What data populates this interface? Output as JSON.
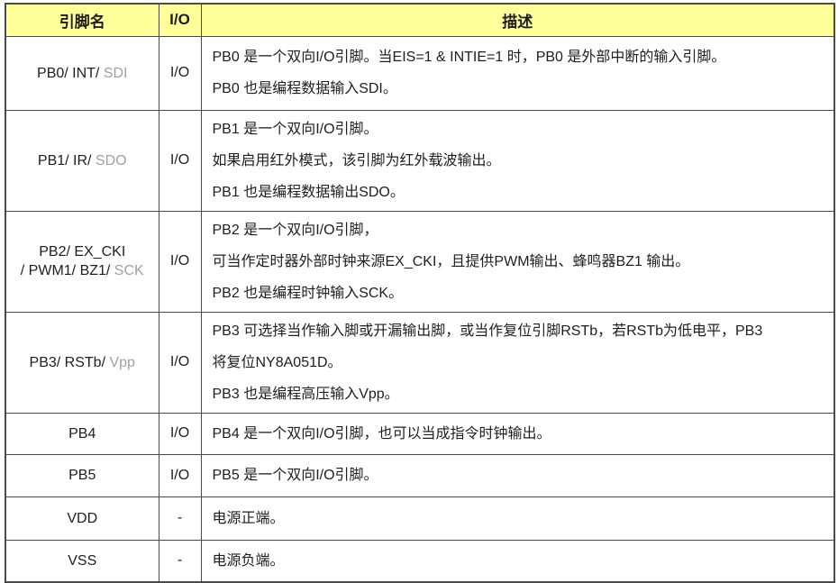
{
  "colors": {
    "header_bg": "#FFFF99",
    "border": "#4A4A4A",
    "text": "#1E1E1E",
    "muted_text": "#A0A0A0"
  },
  "table": {
    "headers": [
      "引脚名",
      "I/O",
      "描述"
    ],
    "rows": [
      {
        "pin": [
          [
            {
              "text": "PB0/ INT/ "
            },
            {
              "text": "SDI",
              "muted": true
            }
          ]
        ],
        "io": "I/O",
        "desc": [
          "PB0 是一个双向I/O引脚。当EIS=1 & INTIE=1 时，PB0 是外部中断的输入引脚。",
          "PB0 也是编程数据输入SDI。"
        ]
      },
      {
        "pin": [
          [
            {
              "text": "PB1/ IR/ "
            },
            {
              "text": "SDO",
              "muted": true
            }
          ]
        ],
        "io": "I/O",
        "desc": [
          "PB1 是一个双向I/O引脚。",
          "如果启用红外模式，该引脚为红外载波输出。",
          "PB1 也是编程数据输出SDO。"
        ]
      },
      {
        "pin": [
          [
            {
              "text": "PB2/ EX_CKI"
            }
          ],
          [
            {
              "text": "/ PWM1/ BZ1/ "
            },
            {
              "text": "SCK",
              "muted": true
            }
          ]
        ],
        "io": "I/O",
        "desc": [
          "PB2 是一个双向I/O引脚，",
          "可当作定时器外部时钟来源EX_CKI，且提供PWM输出、蜂鸣器BZ1 输出。",
          "PB2 也是编程时钟输入SCK。"
        ]
      },
      {
        "pin": [
          [
            {
              "text": "PB3/ RSTb/ "
            },
            {
              "text": "Vpp",
              "muted": true
            }
          ]
        ],
        "io": "I/O",
        "desc": [
          "PB3 可选择当作输入脚或开漏输出脚，或当作复位引脚RSTb，若RSTb为低电平，PB3",
          "将复位NY8A051D。",
          "PB3 也是编程高压输入Vpp。"
        ]
      },
      {
        "pin": [
          [
            {
              "text": "PB4"
            }
          ]
        ],
        "io": "I/O",
        "desc": [
          "PB4 是一个双向I/O引脚，也可以当成指令时钟输出。"
        ]
      },
      {
        "pin": [
          [
            {
              "text": "PB5"
            }
          ]
        ],
        "io": "I/O",
        "desc": [
          "PB5 是一个双向I/O引脚。"
        ]
      },
      {
        "pin": [
          [
            {
              "text": "VDD"
            }
          ]
        ],
        "io": "-",
        "desc": [
          "电源正端。"
        ]
      },
      {
        "pin": [
          [
            {
              "text": "VSS"
            }
          ]
        ],
        "io": "-",
        "desc": [
          "电源负端。"
        ]
      }
    ]
  }
}
